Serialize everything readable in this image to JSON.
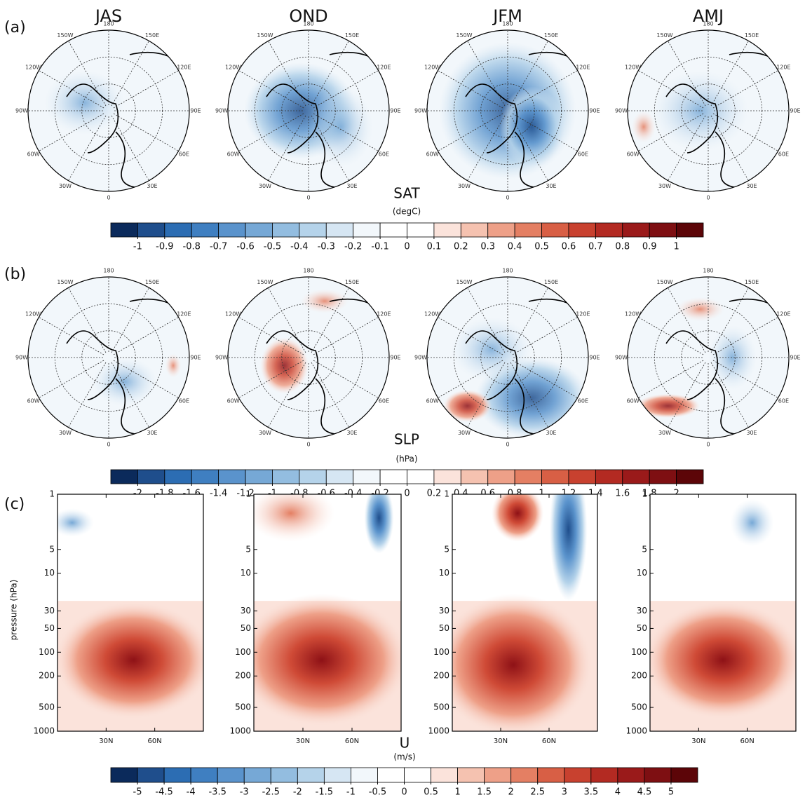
{
  "panel_labels": [
    "(a)",
    "(b)",
    "(c)"
  ],
  "seasons": [
    "JAS",
    "OND",
    "JFM",
    "AMJ"
  ],
  "map_lon_labels": [
    "180",
    "150E",
    "120E",
    "90E",
    "60E",
    "30E",
    "0",
    "30W",
    "60W",
    "90W",
    "120W",
    "150W"
  ],
  "palette": [
    "#0b2a5b",
    "#1f4e8c",
    "#2c6db3",
    "#3f7fc1",
    "#5a93cc",
    "#76a8d6",
    "#93bde0",
    "#b5d3ea",
    "#d6e6f3",
    "#f2f7fb",
    "#ffffff",
    "#ffffff",
    "#fbe3db",
    "#f5c2b0",
    "#eea088",
    "#e47f63",
    "#d85f45",
    "#c8412f",
    "#b32a22",
    "#9a1a1a",
    "#7e0f12",
    "#5c0508"
  ],
  "colorbars": [
    {
      "title": "SAT",
      "units": "(degC)",
      "ticks": [
        -1,
        -0.9,
        -0.8,
        -0.7,
        -0.6,
        -0.5,
        -0.4,
        -0.3,
        -0.2,
        -0.1,
        0,
        0.1,
        0.2,
        0.3,
        0.4,
        0.5,
        0.6,
        0.7,
        0.8,
        0.9,
        1
      ]
    },
    {
      "title": "SLP",
      "units": "(hPa)",
      "ticks": [
        -2,
        -1.8,
        -1.6,
        -1.4,
        -1.2,
        -1,
        -0.8,
        -0.6,
        -0.4,
        -0.2,
        0,
        0.2,
        0.4,
        0.6,
        0.8,
        1,
        1.2,
        1.4,
        1.6,
        1.8,
        2
      ]
    },
    {
      "title": "U",
      "units": "(m/s)",
      "ticks": [
        -5,
        -4.5,
        -4,
        -3.5,
        -3,
        -2.5,
        -2,
        -1.5,
        -1,
        -0.5,
        0,
        0.5,
        1,
        1.5,
        2,
        2.5,
        3,
        3.5,
        4,
        4.5,
        5
      ]
    }
  ],
  "profile": {
    "ylabel": "pressure (hPa)",
    "log_y": true,
    "ylim": [
      1000,
      1
    ],
    "yticks": [
      1,
      5,
      10,
      30,
      50,
      100,
      200,
      500,
      1000
    ],
    "xlim": [
      0,
      90
    ],
    "xticks": [
      {
        "value": 30,
        "label": "30N"
      },
      {
        "value": 60,
        "label": "60N"
      }
    ]
  }
}
